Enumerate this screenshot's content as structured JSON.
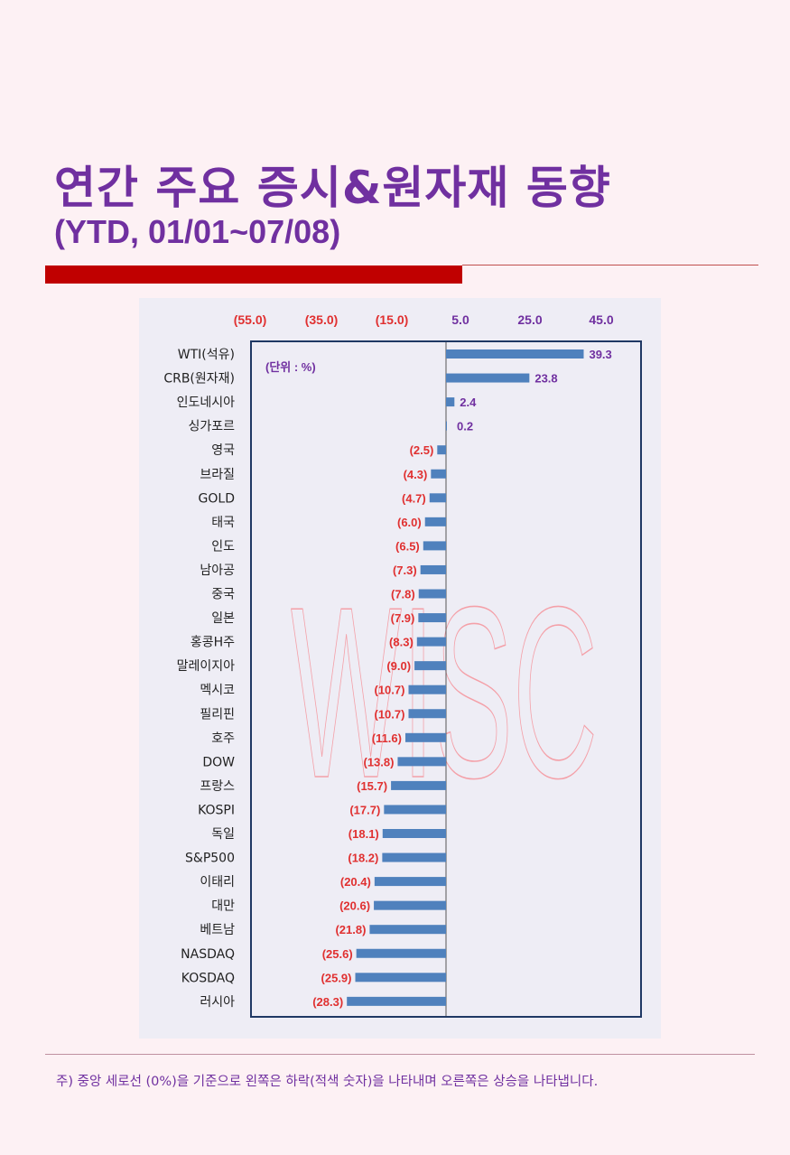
{
  "header": {
    "title": "연간 주요 증시&원자재 동향",
    "subtitle": "(YTD, 01/01~07/08)"
  },
  "chart_data": {
    "type": "bar",
    "orientation": "horizontal",
    "unit_label": "(단위 : %)",
    "watermark": "WISC",
    "top_axis_ticks": [
      {
        "label": "(55.0)",
        "color": "#e03030"
      },
      {
        "label": "(35.0)",
        "color": "#e03030"
      },
      {
        "label": "(15.0)",
        "color": "#e03030"
      },
      {
        "label": "5.0",
        "color": "#7030a0"
      },
      {
        "label": "25.0",
        "color": "#7030a0"
      },
      {
        "label": "45.0",
        "color": "#7030a0"
      }
    ],
    "categories": [
      "WTI(석유)",
      "CRB(원자재)",
      "인도네시아",
      "싱가포르",
      "영국",
      "브라질",
      "GOLD",
      "태국",
      "인도",
      "남아공",
      "중국",
      "일본",
      "홍콩H주",
      "말레이지아",
      "멕시코",
      "필리핀",
      "호주",
      "DOW",
      "프랑스",
      "KOSPI",
      "독일",
      "S&P500",
      "이태리",
      "대만",
      "베트남",
      "NASDAQ",
      "KOSDAQ",
      "러시아"
    ],
    "values": [
      39.3,
      23.8,
      2.4,
      0.2,
      -2.5,
      -4.3,
      -4.7,
      -6.0,
      -6.5,
      -7.3,
      -7.8,
      -7.9,
      -8.3,
      -9.0,
      -10.7,
      -10.7,
      -11.6,
      -13.8,
      -15.7,
      -17.7,
      -18.1,
      -18.2,
      -20.4,
      -20.6,
      -21.8,
      -25.6,
      -25.9,
      -28.3
    ],
    "value_labels": [
      "39.3",
      "23.8",
      "2.4",
      "0.2",
      "(2.5)",
      "(4.3)",
      "(4.7)",
      "(6.0)",
      "(6.5)",
      "(7.3)",
      "(7.8)",
      "(7.9)",
      "(8.3)",
      "(9.0)",
      "(10.7)",
      "(10.7)",
      "(11.6)",
      "(13.8)",
      "(15.7)",
      "(17.7)",
      "(18.1)",
      "(18.2)",
      "(20.4)",
      "(20.6)",
      "(21.8)",
      "(25.6)",
      "(25.9)",
      "(28.3)"
    ],
    "colors": {
      "bar": "#4f81bd",
      "positive_label": "#7030a0",
      "negative_label": "#e03030",
      "frame": "#1f3864",
      "watermark": "#f4a0a8"
    }
  },
  "footnote": "주) 중앙 세로선 (0%)을 기준으로 왼쪽은 하락(적색 숫자)을 나타내며 오른쪽은 상승을 나타냅니다."
}
